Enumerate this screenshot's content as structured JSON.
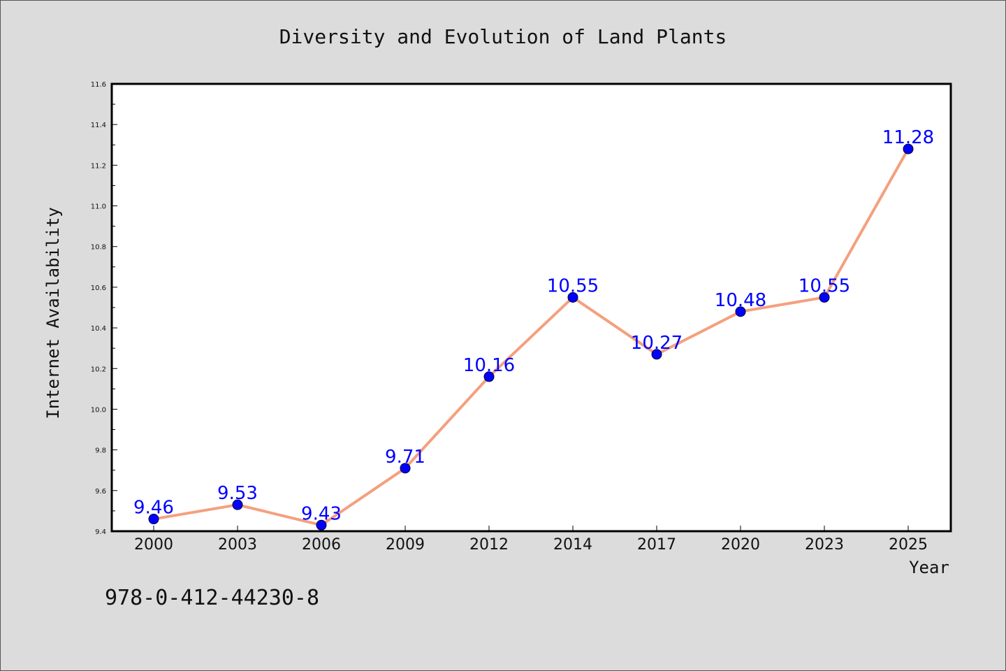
{
  "chart_data": {
    "type": "line",
    "title": "Diversity and Evolution of Land Plants",
    "xlabel": "Year",
    "ylabel": "Internet Availability",
    "categories": [
      "2000",
      "2003",
      "2006",
      "2009",
      "2012",
      "2014",
      "2017",
      "2020",
      "2023",
      "2025"
    ],
    "series": [
      {
        "values": [
          9.46,
          9.53,
          9.43,
          9.71,
          10.16,
          10.55,
          10.27,
          10.48,
          10.55,
          11.28
        ]
      }
    ],
    "ylim": [
      9.4,
      11.6
    ],
    "yticks": [
      "9.4",
      "9.6",
      "9.8",
      "10.0",
      "10.2",
      "10.4",
      "10.6",
      "10.8",
      "11.0",
      "11.2",
      "11.4",
      "11.6"
    ],
    "data_labels": [
      "9.46",
      "9.53",
      "9.43",
      "9.71",
      "10.16",
      "10.55",
      "10.27",
      "10.48",
      "10.55",
      "11.28"
    ],
    "grid": false,
    "legend": "none",
    "annotation": "978-0-412-44230-8",
    "colors": {
      "background": "#dcdcdc",
      "plot_background": "#ffffff",
      "line": "#f4a07e",
      "marker": "#0000ff",
      "data_label": "#0000ff",
      "text": "#111111"
    }
  }
}
